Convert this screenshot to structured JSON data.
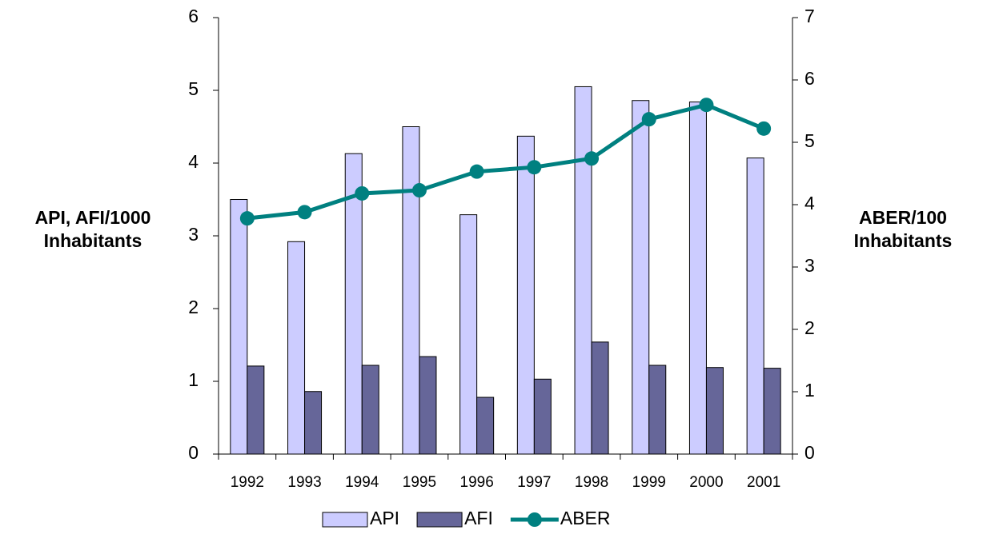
{
  "chart_data": {
    "type": "bar",
    "y_label": "API, AFI/1000 Inhabitants",
    "y2_label": "ABER/100 Inhabitants",
    "categories": [
      "1992",
      "1993",
      "1994",
      "1995",
      "1996",
      "1997",
      "1998",
      "1999",
      "2000",
      "2001"
    ],
    "series": [
      {
        "name": "API",
        "type": "bar",
        "color": "#ccccff",
        "values": [
          3.5,
          2.92,
          4.13,
          4.5,
          3.29,
          4.37,
          5.05,
          4.86,
          4.84,
          4.07
        ]
      },
      {
        "name": "AFI",
        "type": "bar",
        "color": "#666699",
        "values": [
          1.21,
          0.86,
          1.22,
          1.34,
          0.78,
          1.03,
          1.54,
          1.22,
          1.19,
          1.18
        ]
      },
      {
        "name": "ABER",
        "type": "line",
        "axis": "y2",
        "color": "#008080",
        "values": [
          3.78,
          3.88,
          4.18,
          4.23,
          4.53,
          4.6,
          4.74,
          5.37,
          5.6,
          5.22
        ]
      }
    ],
    "ylim": [
      0,
      6
    ],
    "yticks": [
      0,
      1,
      2,
      3,
      4,
      5,
      6
    ],
    "y2lim": [
      0,
      7
    ],
    "y2ticks": [
      0,
      1,
      2,
      3,
      4,
      5,
      6,
      7
    ],
    "grid": false,
    "legend": "bottom"
  }
}
